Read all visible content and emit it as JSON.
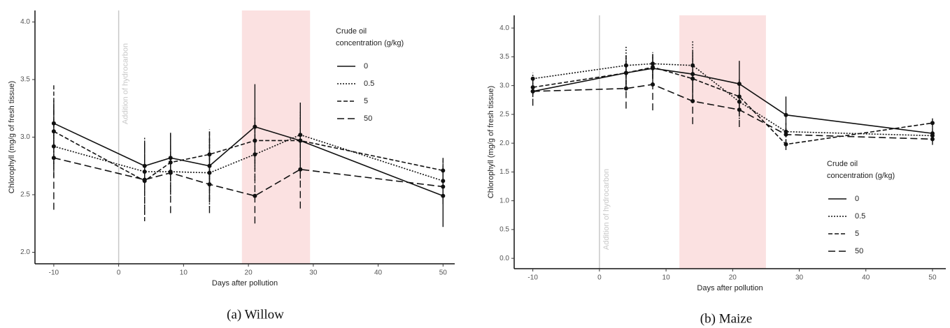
{
  "chart_data": [
    {
      "type": "line",
      "caption": "(a)  Willow",
      "x_label": "Days after pollution",
      "y_label": "Chlorophyll (mg/g of fresh tissue)",
      "annotation": "Addition of hydrocarbon",
      "vline": 0,
      "shaded_x": [
        19,
        29.5
      ],
      "shade_color": "#fbe1e1",
      "legend_title": [
        "Crude oil",
        "concentration (g/kg)"
      ],
      "legend": "upper right",
      "x": [
        -10,
        4,
        8,
        14,
        21,
        28,
        50
      ],
      "xlim": [
        -12.9,
        51.8
      ],
      "xticks": [
        -10,
        0,
        10,
        20,
        30,
        40,
        50
      ],
      "ylim": [
        1.9,
        4.1
      ],
      "yticks": [
        {
          "value": 2,
          "label": "2.0"
        },
        2.5,
        {
          "value": 3,
          "label": "3.0"
        },
        3.5,
        {
          "value": 4,
          "label": "4.0"
        }
      ],
      "series": [
        {
          "name": "0",
          "color": "#111111",
          "dash": "none",
          "values": [
            3.12,
            2.75,
            2.82,
            2.75,
            3.09,
            2.97,
            2.49
          ],
          "errors": [
            0.2,
            0.2,
            0.2,
            0.3,
            0.37,
            0.33,
            0.27
          ]
        },
        {
          "name": "0.5",
          "color": "#111111",
          "dash": "2,2",
          "values": [
            2.92,
            2.7,
            2.7,
            2.69,
            2.85,
            3.02,
            2.62
          ],
          "errors": [
            0.2,
            0.3,
            0.2,
            0.3,
            0.25,
            0.2,
            0.2
          ]
        },
        {
          "name": "5",
          "color": "#111111",
          "dash": "6,3",
          "values": [
            3.05,
            2.62,
            2.78,
            2.85,
            2.97,
            2.97,
            2.71
          ],
          "errors": [
            0.4,
            0.35,
            0.27,
            0.22,
            0.2,
            0.2,
            0.1
          ]
        },
        {
          "name": "50",
          "color": "#111111",
          "dash": "10,5",
          "values": [
            2.82,
            2.63,
            2.69,
            2.59,
            2.49,
            2.72,
            2.57
          ],
          "errors": [
            0.45,
            0.3,
            0.35,
            0.25,
            0.24,
            0.34,
            0.15
          ]
        }
      ]
    },
    {
      "type": "line",
      "caption": "(b)  Maize",
      "x_label": "Days after pollution",
      "y_label": "Chlorophyll (mg/g of fresh tissue)",
      "annotation": "Addition of hydrocarbon",
      "vline": 0,
      "shaded_x": [
        12,
        25
      ],
      "shade_color": "#fbe1e1",
      "legend_title": [
        "Crude oil",
        "concentration (g/kg)"
      ],
      "legend": "lower right",
      "x": [
        -10,
        4,
        8,
        14,
        21,
        28,
        50
      ],
      "xlim": [
        -12.8,
        52
      ],
      "xticks": [
        -10,
        0,
        10,
        20,
        30,
        40,
        50
      ],
      "ylim": [
        -0.18,
        4.22
      ],
      "yticks": [
        {
          "value": 0,
          "label": "0.0"
        },
        0.5,
        {
          "value": 1,
          "label": "1.0"
        },
        1.5,
        {
          "value": 2,
          "label": "2.0"
        },
        2.5,
        {
          "value": 3,
          "label": "3.0"
        },
        3.5,
        {
          "value": 4,
          "label": "4.0"
        }
      ],
      "series": [
        {
          "name": "0",
          "color": "#111111",
          "dash": "none",
          "values": [
            2.9,
            3.22,
            3.3,
            3.2,
            3.03,
            2.49,
            2.17
          ],
          "errors": [
            0.1,
            0.3,
            0.25,
            0.4,
            0.4,
            0.32,
            0.1
          ]
        },
        {
          "name": "0.5",
          "color": "#111111",
          "dash": "2,2",
          "values": [
            3.12,
            3.35,
            3.38,
            3.35,
            2.72,
            2.2,
            2.13
          ],
          "errors": [
            0.1,
            0.33,
            0.2,
            0.43,
            0.3,
            0.1,
            0.1
          ]
        },
        {
          "name": "5",
          "color": "#111111",
          "dash": "6,3",
          "values": [
            2.97,
            3.22,
            3.32,
            3.12,
            2.81,
            1.98,
            2.35
          ],
          "errors": [
            0.1,
            0.3,
            0.2,
            0.35,
            0.3,
            0.1,
            0.08
          ]
        },
        {
          "name": "50",
          "color": "#111111",
          "dash": "10,5",
          "values": [
            2.9,
            2.95,
            3.02,
            2.73,
            2.58,
            2.15,
            2.07
          ],
          "errors": [
            0.25,
            0.35,
            0.45,
            0.4,
            0.3,
            0.2,
            0.1
          ]
        }
      ]
    }
  ]
}
